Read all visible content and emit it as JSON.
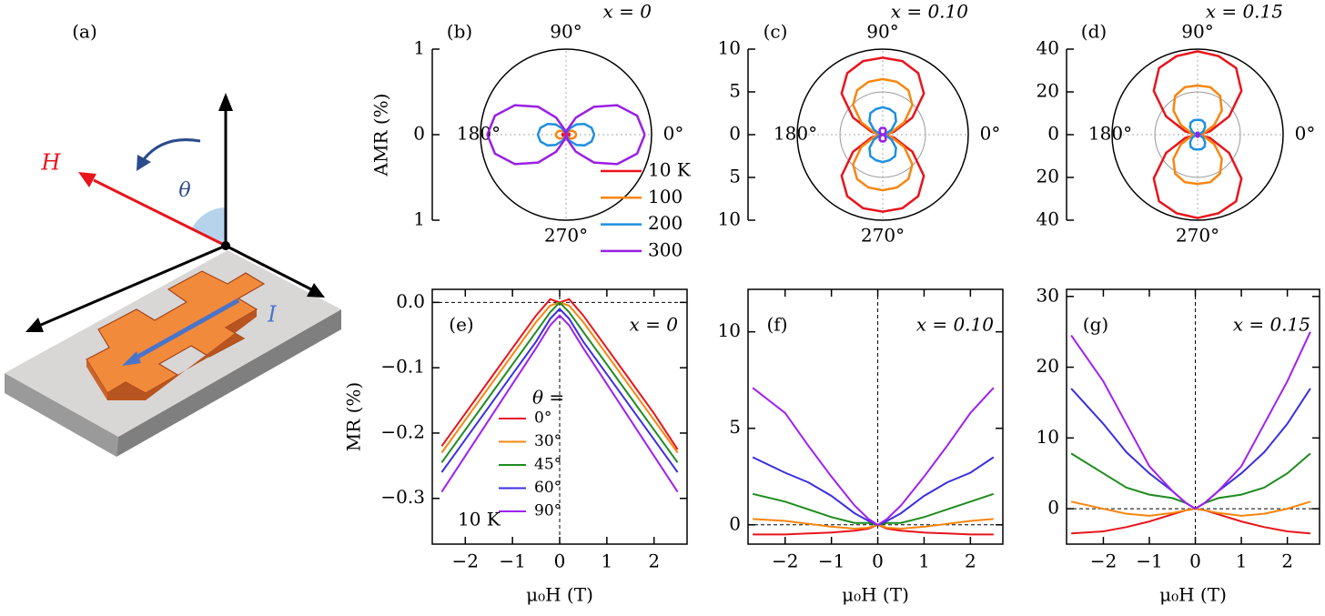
{
  "diagram": {
    "label": "(a)",
    "h_label": "H",
    "theta_label": "θ",
    "i_label": "I"
  },
  "chart_data": [
    {
      "type": "polar",
      "label": "(b)",
      "annotation": "x = 0",
      "ylabel": "AMR (%)",
      "x": [
        0,
        15,
        30,
        45,
        60,
        75,
        90,
        105,
        120,
        135,
        150,
        165,
        180,
        195,
        210,
        225,
        240,
        255,
        270,
        285,
        300,
        315,
        330,
        345,
        360
      ],
      "xticks": [
        {
          "value": 0,
          "label": "0°"
        },
        {
          "value": 90,
          "label": "90°"
        },
        {
          "value": 180,
          "label": "180°"
        },
        {
          "value": 270,
          "label": "270°"
        }
      ],
      "ylim": [
        -1,
        1
      ],
      "yticks": [
        {
          "value": -1,
          "label": "1"
        },
        0,
        {
          "value": 1,
          "label": "1"
        }
      ],
      "series": [
        {
          "name": "10 K",
          "color": "#e8141c",
          "values": [
            0.04,
            0.04,
            0.03,
            0.02,
            0.01,
            0,
            0,
            0,
            0.01,
            0.02,
            0.03,
            0.04,
            0.04,
            0.04,
            0.03,
            0.02,
            0.01,
            0,
            0,
            0,
            0.01,
            0.02,
            0.03,
            0.04,
            0.04
          ]
        },
        {
          "name": "100",
          "color": "#f7860f",
          "values": [
            0.12,
            0.11,
            0.09,
            0.06,
            0.03,
            0.01,
            0,
            0.01,
            0.03,
            0.06,
            0.09,
            0.11,
            0.12,
            0.11,
            0.09,
            0.06,
            0.03,
            0.01,
            0,
            0.01,
            0.03,
            0.06,
            0.09,
            0.11,
            0.12
          ]
        },
        {
          "name": "200",
          "color": "#1f8fe0",
          "values": [
            0.33,
            0.31,
            0.25,
            0.17,
            0.08,
            0.02,
            0,
            0.02,
            0.08,
            0.17,
            0.25,
            0.31,
            0.33,
            0.31,
            0.25,
            0.17,
            0.08,
            0.02,
            0,
            0.02,
            0.08,
            0.17,
            0.25,
            0.31,
            0.33
          ]
        },
        {
          "name": "300",
          "color": "#9a1fe6",
          "values": [
            0.92,
            0.86,
            0.69,
            0.46,
            0.23,
            0.06,
            0,
            0.06,
            0.23,
            0.46,
            0.69,
            0.86,
            0.92,
            0.86,
            0.69,
            0.46,
            0.23,
            0.06,
            0,
            0.06,
            0.23,
            0.46,
            0.69,
            0.86,
            0.92
          ]
        }
      ]
    },
    {
      "type": "polar",
      "label": "(c)",
      "annotation": "x = 0.10",
      "x": [
        0,
        15,
        30,
        45,
        60,
        75,
        90,
        105,
        120,
        135,
        150,
        165,
        180,
        195,
        210,
        225,
        240,
        255,
        270,
        285,
        300,
        315,
        330,
        345,
        360
      ],
      "xticks": [
        {
          "value": 0,
          "label": "0°"
        },
        {
          "value": 90,
          "label": "90°"
        },
        {
          "value": 180,
          "label": "180°"
        },
        {
          "value": 270,
          "label": "270°"
        }
      ],
      "ylim": [
        -10,
        10
      ],
      "yticks": [
        {
          "value": -10,
          "label": "10"
        },
        {
          "value": -5,
          "label": "5"
        },
        0,
        5,
        10
      ],
      "series": [
        {
          "color": "#e8141c",
          "values": [
            0.3,
            1.4,
            4,
            6.8,
            8.3,
            8.9,
            9,
            8.9,
            8.3,
            6.8,
            4,
            1.4,
            0.3,
            1.4,
            4,
            6.8,
            8.3,
            8.9,
            9,
            8.9,
            8.3,
            6.8,
            4,
            1.4,
            0.3
          ]
        },
        {
          "color": "#f7860f",
          "values": [
            0.2,
            1,
            2.9,
            4.9,
            6,
            6.4,
            6.5,
            6.4,
            6,
            4.9,
            2.9,
            1,
            0.2,
            1,
            2.9,
            4.9,
            6,
            6.4,
            6.5,
            6.4,
            6,
            4.9,
            2.9,
            1,
            0.2
          ]
        },
        {
          "color": "#1f8fe0",
          "values": [
            0.1,
            0.4,
            1.2,
            2.2,
            2.9,
            3.1,
            3.2,
            3.1,
            2.9,
            2.2,
            1.2,
            0.4,
            0.1,
            0.4,
            1.2,
            2.2,
            2.9,
            3.1,
            3.2,
            3.1,
            2.9,
            2.2,
            1.2,
            0.4,
            0.1
          ]
        },
        {
          "color": "#9a1fe6",
          "values": [
            0,
            0.1,
            0.3,
            0.5,
            0.7,
            0.8,
            0.8,
            0.8,
            0.7,
            0.5,
            0.3,
            0.1,
            0,
            0.1,
            0.3,
            0.5,
            0.7,
            0.8,
            0.8,
            0.8,
            0.7,
            0.5,
            0.3,
            0.1,
            0
          ]
        }
      ]
    },
    {
      "type": "polar",
      "label": "(d)",
      "annotation": "x = 0.15",
      "x": [
        0,
        15,
        30,
        45,
        60,
        75,
        90,
        105,
        120,
        135,
        150,
        165,
        180,
        195,
        210,
        225,
        240,
        255,
        270,
        285,
        300,
        315,
        330,
        345,
        360
      ],
      "xticks": [
        {
          "value": 0,
          "label": "0°"
        },
        {
          "value": 90,
          "label": "90°"
        },
        {
          "value": 180,
          "label": "180°"
        },
        {
          "value": 270,
          "label": "270°"
        }
      ],
      "ylim": [
        -40,
        40
      ],
      "yticks": [
        {
          "value": -40,
          "label": "40"
        },
        {
          "value": -20,
          "label": "20"
        },
        0,
        20,
        40
      ],
      "series": [
        {
          "color": "#e8141c",
          "values": [
            0.5,
            6,
            17,
            29,
            36,
            38,
            39,
            38,
            36,
            29,
            17,
            6,
            0.5,
            6,
            17,
            29,
            36,
            38,
            39,
            38,
            36,
            29,
            17,
            6,
            0.5
          ]
        },
        {
          "color": "#f7860f",
          "values": [
            0.3,
            3,
            9,
            16,
            21,
            23,
            23,
            23,
            21,
            16,
            9,
            3,
            0.3,
            3,
            9,
            16,
            21,
            23,
            23,
            23,
            21,
            16,
            9,
            3,
            0.3
          ]
        },
        {
          "color": "#1f8fe0",
          "values": [
            0.1,
            1,
            3,
            5,
            6.5,
            7,
            7,
            7,
            6.5,
            5,
            3,
            1,
            0.1,
            1,
            3,
            5,
            6.5,
            7,
            7,
            7,
            6.5,
            5,
            3,
            1,
            0.1
          ]
        },
        {
          "color": "#9a1fe6",
          "values": [
            0,
            0.1,
            0.4,
            0.7,
            0.9,
            1,
            1,
            1,
            0.9,
            0.7,
            0.4,
            0.1,
            0,
            0.1,
            0.4,
            0.7,
            0.9,
            1,
            1,
            1,
            0.9,
            0.7,
            0.4,
            0.1,
            0
          ]
        }
      ]
    },
    {
      "type": "line",
      "label": "(e)",
      "annotation": "x = 0",
      "ylabel": "MR (%)",
      "xlabel": "μ₀H (T)",
      "legend_title": "θ =",
      "note": "10 K",
      "x": [
        -2.5,
        -2,
        -1.5,
        -1,
        -0.5,
        -0.2,
        0,
        0.2,
        0.5,
        1,
        1.5,
        2,
        2.5
      ],
      "xlim": [
        -2.7,
        2.7
      ],
      "ylim": [
        -0.37,
        0.02
      ],
      "xticks": [
        {
          "value": -2,
          "label": "−2"
        },
        {
          "value": -1,
          "label": "−1"
        },
        0,
        1,
        2
      ],
      "yticks": [
        {
          "value": 0,
          "label": "0.0"
        },
        {
          "value": -0.1,
          "label": "−0.1"
        },
        {
          "value": -0.2,
          "label": "−0.2"
        },
        {
          "value": -0.3,
          "label": "−0.3"
        }
      ],
      "series": [
        {
          "name": "0°",
          "color": "#e8141c",
          "values": [
            -0.22,
            -0.17,
            -0.12,
            -0.07,
            -0.02,
            0.005,
            0,
            0.005,
            -0.02,
            -0.07,
            -0.12,
            -0.17,
            -0.225
          ]
        },
        {
          "name": "30°",
          "color": "#f7860f",
          "values": [
            -0.23,
            -0.18,
            -0.13,
            -0.08,
            -0.03,
            -0.005,
            0,
            -0.005,
            -0.03,
            -0.08,
            -0.13,
            -0.18,
            -0.23
          ]
        },
        {
          "name": "45°",
          "color": "#1e8c1e",
          "values": [
            -0.245,
            -0.195,
            -0.145,
            -0.095,
            -0.045,
            -0.015,
            0,
            -0.015,
            -0.045,
            -0.095,
            -0.145,
            -0.195,
            -0.245
          ]
        },
        {
          "name": "60°",
          "color": "#3b2fe0",
          "values": [
            -0.26,
            -0.21,
            -0.16,
            -0.11,
            -0.06,
            -0.025,
            -0.01,
            -0.025,
            -0.06,
            -0.11,
            -0.16,
            -0.21,
            -0.26
          ]
        },
        {
          "name": "90°",
          "color": "#a020f0",
          "values": [
            -0.29,
            -0.235,
            -0.18,
            -0.125,
            -0.07,
            -0.035,
            -0.02,
            -0.035,
            -0.07,
            -0.125,
            -0.18,
            -0.235,
            -0.29
          ]
        }
      ]
    },
    {
      "type": "line",
      "label": "(f)",
      "annotation": "x = 0.10",
      "xlabel": "μ₀H (T)",
      "x": [
        -2.7,
        -2,
        -1.5,
        -1,
        -0.5,
        -0.2,
        0,
        0.2,
        0.5,
        1,
        1.5,
        2,
        2.5
      ],
      "xlim": [
        -2.8,
        2.7
      ],
      "ylim": [
        -1,
        12.2
      ],
      "xticks": [
        {
          "value": -2,
          "label": "−2"
        },
        {
          "value": -1,
          "label": "−1"
        },
        0,
        1,
        2
      ],
      "yticks": [
        0,
        5,
        10
      ],
      "series": [
        {
          "color": "#e8141c",
          "values": [
            -0.5,
            -0.5,
            -0.45,
            -0.4,
            -0.3,
            -0.2,
            0,
            -0.2,
            -0.3,
            -0.4,
            -0.45,
            -0.5,
            -0.5
          ]
        },
        {
          "color": "#f7860f",
          "values": [
            0.3,
            0.2,
            0.05,
            -0.1,
            -0.2,
            -0.15,
            0,
            -0.15,
            -0.2,
            -0.1,
            0.05,
            0.2,
            0.3
          ]
        },
        {
          "color": "#1e8c1e",
          "values": [
            1.6,
            1.2,
            0.8,
            0.4,
            0.1,
            0.1,
            0,
            0.1,
            0.1,
            0.4,
            0.8,
            1.2,
            1.6
          ]
        },
        {
          "color": "#3b2fe0",
          "values": [
            3.5,
            2.7,
            2.2,
            1.5,
            0.6,
            0.2,
            0,
            0.2,
            0.6,
            1.5,
            2.2,
            2.7,
            3.5
          ]
        },
        {
          "color": "#a020f0",
          "values": [
            7.1,
            5.8,
            4.1,
            2.5,
            1,
            0.3,
            0,
            0.3,
            1,
            2.5,
            4.1,
            5.8,
            7.1
          ]
        }
      ]
    },
    {
      "type": "line",
      "label": "(g)",
      "annotation": "x = 0.15",
      "xlabel": "μ₀H (T)",
      "x": [
        -2.7,
        -2,
        -1.5,
        -1,
        -0.5,
        -0.2,
        0,
        0.2,
        0.5,
        1,
        1.5,
        2,
        2.5
      ],
      "xlim": [
        -2.8,
        2.7
      ],
      "ylim": [
        -5,
        31
      ],
      "xticks": [
        {
          "value": -2,
          "label": "−2"
        },
        {
          "value": -1,
          "label": "−1"
        },
        0,
        1,
        2
      ],
      "yticks": [
        0,
        10,
        20,
        30
      ],
      "series": [
        {
          "color": "#e8141c",
          "values": [
            -3.5,
            -3.2,
            -2.6,
            -1.8,
            -0.8,
            -0.2,
            0,
            -0.2,
            -0.8,
            -1.8,
            -2.6,
            -3.2,
            -3.5
          ]
        },
        {
          "color": "#f7860f",
          "values": [
            1,
            0,
            -0.7,
            -1,
            -0.6,
            -0.2,
            0,
            -0.2,
            -0.6,
            -1,
            -0.7,
            0,
            1
          ]
        },
        {
          "color": "#1e8c1e",
          "values": [
            7.8,
            5,
            3,
            2,
            1.5,
            0.8,
            0,
            0.8,
            1.5,
            2,
            3,
            5,
            7.8
          ]
        },
        {
          "color": "#3b2fe0",
          "values": [
            17,
            12,
            8,
            5,
            2.5,
            0.8,
            0,
            0.8,
            2.5,
            5,
            8,
            12,
            17
          ]
        },
        {
          "color": "#a020f0",
          "values": [
            24.5,
            18,
            12,
            6,
            2.5,
            0.8,
            0,
            0.8,
            2.5,
            6,
            12,
            18,
            25
          ]
        }
      ]
    }
  ]
}
